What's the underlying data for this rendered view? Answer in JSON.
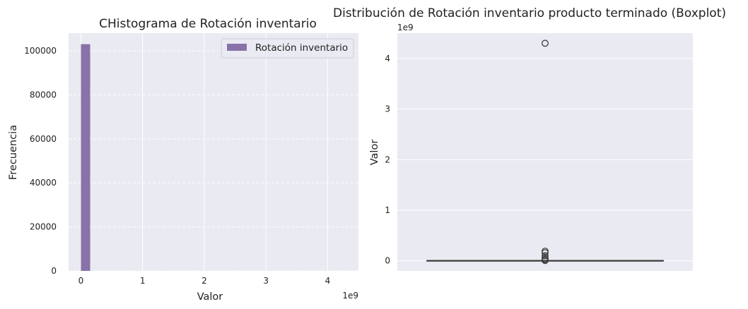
{
  "chart_data": [
    {
      "type": "bar",
      "title": "CHistograma de Rotación inventario",
      "xlabel": "Valor",
      "ylabel": "Frecuencia",
      "x_offset_label": "1e9",
      "xlim": [
        -0.2,
        4.5
      ],
      "ylim": [
        0,
        108000
      ],
      "x_ticks": [
        0,
        1,
        2,
        3,
        4
      ],
      "y_ticks": [
        0,
        20000,
        40000,
        60000,
        80000,
        100000
      ],
      "grid": true,
      "legend": {
        "placement": "top-right",
        "entries": [
          "Rotación inventario"
        ]
      },
      "series": [
        {
          "name": "Rotación inventario",
          "color": "#8872a8",
          "bins": [
            {
              "x0": 0.0,
              "x1": 0.15,
              "count": 103000
            }
          ]
        }
      ]
    },
    {
      "type": "boxplot",
      "title": "Distribución de Rotación inventario producto terminado (Boxplot)",
      "ylabel": "Valor",
      "y_offset_label": "1e9",
      "ylim": [
        -0.2,
        4.5
      ],
      "y_ticks": [
        0,
        1,
        2,
        3,
        4
      ],
      "grid": true,
      "box": {
        "whisker_low": 0,
        "q1": 0,
        "median": 0,
        "q3": 0,
        "whisker_high": 0
      },
      "outliers": [
        4.3,
        0.19,
        0.16,
        0.1,
        0.06,
        0.03,
        0.01,
        0.005
      ]
    }
  ]
}
